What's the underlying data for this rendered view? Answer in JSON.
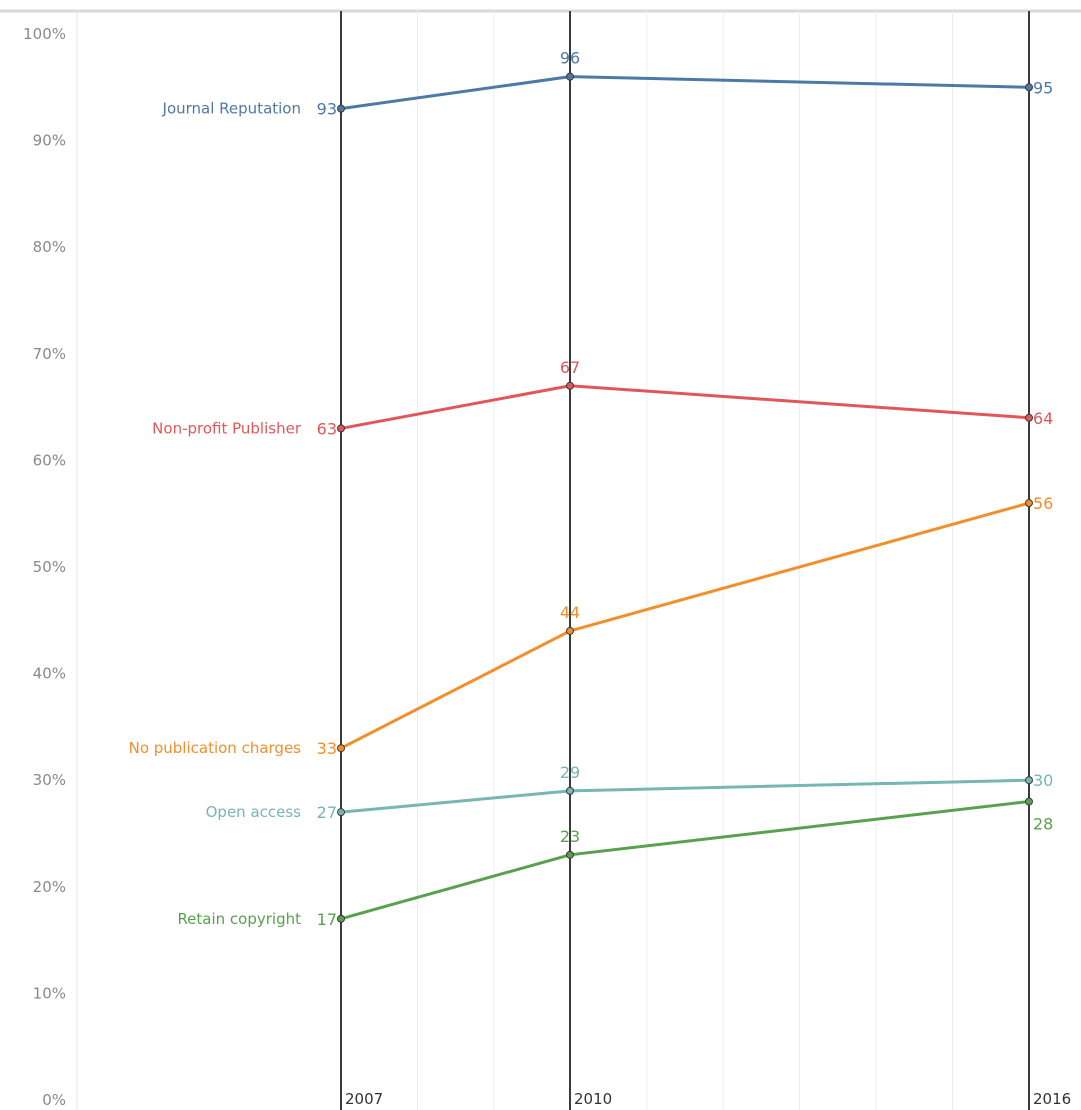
{
  "chart_data": {
    "type": "line",
    "x": [
      "2007",
      "2010",
      "2016"
    ],
    "ylim": [
      0,
      100
    ],
    "yticks": [
      0,
      10,
      20,
      30,
      40,
      50,
      60,
      70,
      80,
      90,
      100
    ],
    "ytick_labels": [
      "0%",
      "10%",
      "20%",
      "30%",
      "40%",
      "50%",
      "60%",
      "70%",
      "80%",
      "90%",
      "100%"
    ],
    "grid": true,
    "legend": "inline-left",
    "series": [
      {
        "name": "Journal Reputation",
        "color": "#4e79a7",
        "values": [
          93,
          96,
          95
        ]
      },
      {
        "name": "Non-profit Publisher",
        "color": "#e15759",
        "values": [
          63,
          67,
          64
        ]
      },
      {
        "name": "No publication charges",
        "color": "#f28e2b",
        "values": [
          33,
          44,
          56
        ]
      },
      {
        "name": "Open access",
        "color": "#76b7b2",
        "values": [
          27,
          29,
          30
        ]
      },
      {
        "name": "Retain copyright",
        "color": "#59a14f",
        "values": [
          17,
          23,
          28
        ]
      }
    ]
  }
}
